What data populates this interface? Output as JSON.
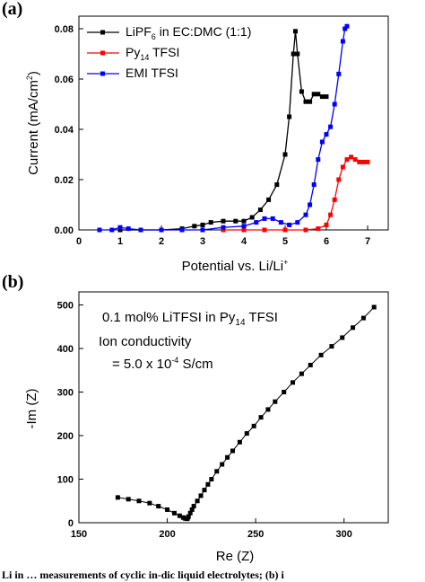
{
  "caption": "Li in … measurements of cyclic in-dic liquid electrolytes; (b) i",
  "chart_data": [
    {
      "panel_label": "(a)",
      "type": "line",
      "xlabel": "Potential vs. Li/Li",
      "xlabel_sup": "+",
      "ylabel": "Current (mA/cm",
      "ylabel_sup": "2",
      "ylabel_end": ")",
      "xlim": [
        0,
        7.5
      ],
      "ylim": [
        0,
        0.085
      ],
      "xticks": [
        0,
        1,
        2,
        3,
        4,
        5,
        6,
        7
      ],
      "yticks": [
        0.0,
        0.02,
        0.04,
        0.06,
        0.08
      ],
      "ytick_labels": [
        "0.00",
        "0.02",
        "0.04",
        "0.06",
        "0.08"
      ],
      "legend_position": "top-left",
      "series": [
        {
          "name": "LiPF6 in EC:DMC (1:1)",
          "name_parts": [
            "LiPF",
            "6",
            " in EC:DMC (1:1)"
          ],
          "color": "#000000",
          "x": [
            1.0,
            1.5,
            2.0,
            2.5,
            2.8,
            3.0,
            3.2,
            3.5,
            3.8,
            4.0,
            4.2,
            4.4,
            4.6,
            4.8,
            5.0,
            5.1,
            5.2,
            5.25,
            5.3,
            5.4,
            5.5,
            5.6,
            5.7,
            5.8,
            5.9,
            6.0
          ],
          "y": [
            0.0,
            0.0,
            0.0,
            0.0005,
            0.0015,
            0.002,
            0.003,
            0.0035,
            0.0035,
            0.0035,
            0.005,
            0.008,
            0.012,
            0.018,
            0.03,
            0.045,
            0.07,
            0.079,
            0.07,
            0.055,
            0.051,
            0.051,
            0.054,
            0.054,
            0.053,
            0.053
          ]
        },
        {
          "name": "Py14 TFSI",
          "name_parts": [
            "Py",
            "14",
            " TFSI"
          ],
          "color": "#ff0000",
          "x": [
            3.5,
            4.0,
            4.5,
            5.0,
            5.5,
            5.8,
            6.0,
            6.1,
            6.2,
            6.3,
            6.4,
            6.5,
            6.6,
            6.7,
            6.8,
            6.9,
            7.0
          ],
          "y": [
            0.0,
            0.0,
            0.0,
            0.0,
            0.0,
            0.0005,
            0.002,
            0.006,
            0.012,
            0.02,
            0.025,
            0.028,
            0.029,
            0.028,
            0.027,
            0.027,
            0.027
          ]
        },
        {
          "name": "EMI TFSI",
          "color": "#0000ff",
          "x": [
            0.5,
            0.8,
            1.0,
            1.2,
            1.5,
            2.0,
            2.5,
            3.0,
            3.5,
            4.0,
            4.3,
            4.5,
            4.7,
            4.9,
            5.1,
            5.3,
            5.5,
            5.6,
            5.7,
            5.8,
            5.9,
            6.0,
            6.1,
            6.2,
            6.3,
            6.4,
            6.45,
            6.5
          ],
          "y": [
            0.0,
            0.0,
            0.001,
            0.0005,
            0.0,
            0.0,
            0.0,
            0.0,
            0.001,
            0.0015,
            0.003,
            0.0045,
            0.0045,
            0.003,
            0.002,
            0.003,
            0.006,
            0.01,
            0.018,
            0.028,
            0.035,
            0.038,
            0.041,
            0.05,
            0.062,
            0.075,
            0.08,
            0.081
          ]
        }
      ]
    },
    {
      "panel_label": "(b)",
      "type": "scatter",
      "xlabel": "Re (Z)",
      "ylabel": "-Im (Z)",
      "xlim": [
        150,
        325
      ],
      "ylim": [
        0,
        530
      ],
      "xticks": [
        150,
        200,
        250,
        300
      ],
      "yticks": [
        0,
        100,
        200,
        300,
        400,
        500
      ],
      "annotation": {
        "line1_parts": [
          "0.1 mol% LiTFSI in Py",
          "14",
          " TFSI"
        ],
        "line2": "Ion conductivity",
        "line3_parts": [
          "= 5.0 x 10",
          "-4",
          " S/cm"
        ]
      },
      "series": [
        {
          "name": "",
          "color": "#000000",
          "x": [
            172,
            178,
            184,
            190,
            195,
            200,
            204,
            207,
            209,
            210,
            211,
            211.5,
            212,
            213,
            214,
            215,
            217,
            219,
            221,
            223,
            225,
            228,
            231,
            234,
            237,
            241,
            245,
            249,
            253,
            257,
            261,
            266,
            271,
            276,
            281,
            287,
            293,
            299,
            305,
            311,
            317
          ],
          "y": [
            58,
            54,
            50,
            45,
            38,
            30,
            22,
            16,
            12,
            10,
            9,
            10,
            14,
            22,
            30,
            38,
            50,
            62,
            75,
            88,
            100,
            118,
            134,
            150,
            165,
            185,
            205,
            222,
            242,
            260,
            278,
            300,
            322,
            342,
            362,
            385,
            405,
            425,
            448,
            470,
            495
          ]
        }
      ]
    }
  ]
}
